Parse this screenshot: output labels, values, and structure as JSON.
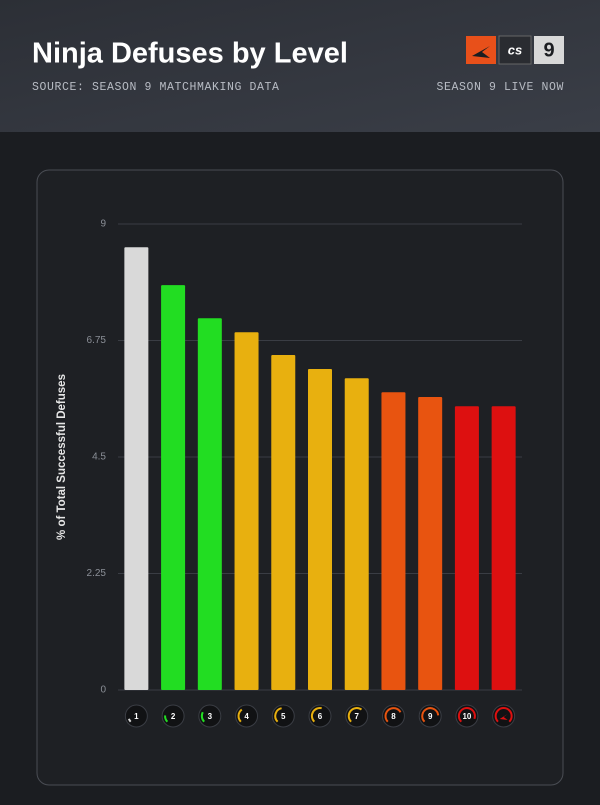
{
  "header": {
    "title": "Ninja Defuses by Level",
    "subtitle": "SOURCE: SEASON 9 MATCHMAKING DATA",
    "tagline": "SEASON 9 LIVE NOW",
    "logo_text": "cs",
    "logo_number": "9"
  },
  "chart_data": {
    "type": "bar",
    "y_label": "% of Total Successful Defuses",
    "categories": [
      "1",
      "2",
      "3",
      "4",
      "5",
      "6",
      "7",
      "8",
      "9",
      "10",
      null
    ],
    "values": [
      8.55,
      7.82,
      7.18,
      6.91,
      6.47,
      6.2,
      6.02,
      5.75,
      5.66,
      5.48,
      5.48
    ],
    "colors": [
      "#d9d9d9",
      "#22dd22",
      "#22dd22",
      "#e8b00f",
      "#e8b00f",
      "#e8b00f",
      "#e8b00f",
      "#e85410",
      "#e85410",
      "#dd1010",
      "#dd1010"
    ],
    "ylim": [
      0,
      9
    ],
    "yticks": [
      0,
      2.25,
      4.5,
      6.75,
      9
    ],
    "grid": true
  }
}
